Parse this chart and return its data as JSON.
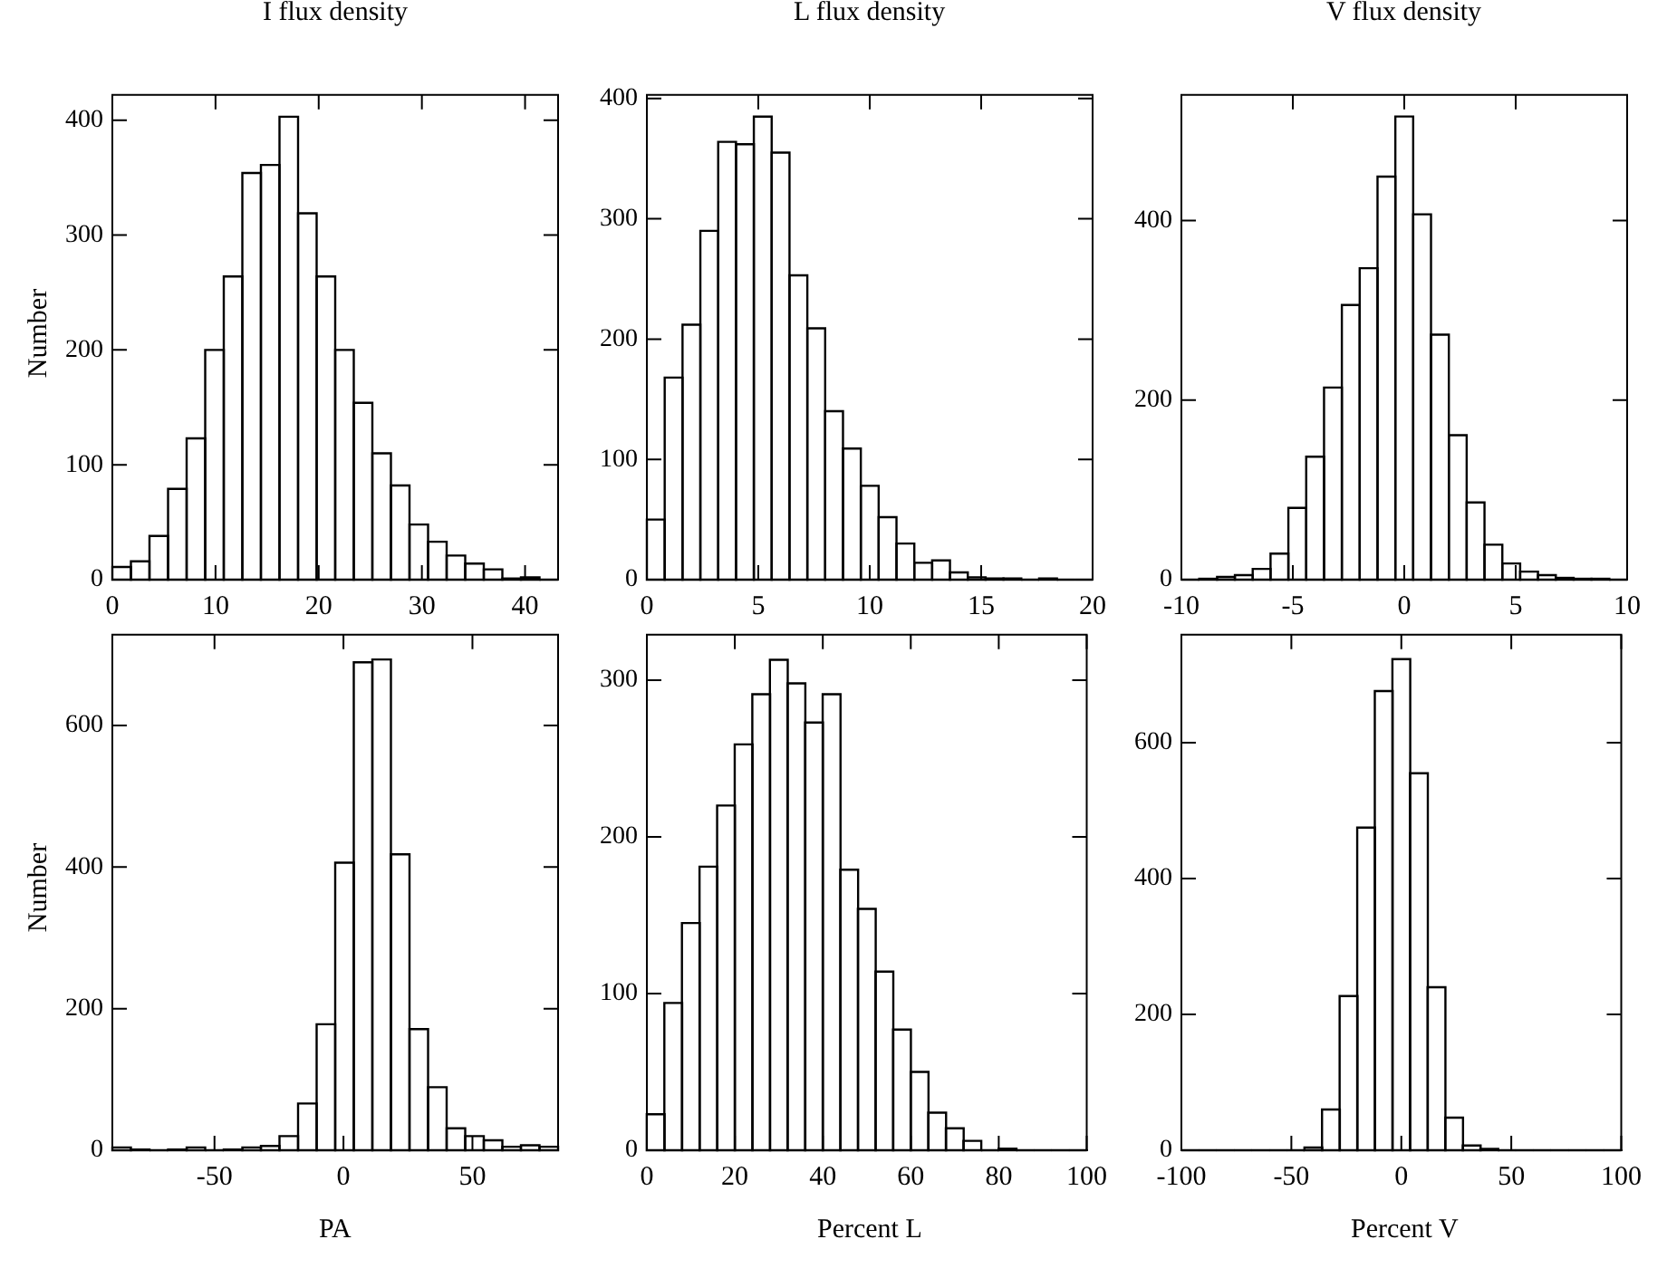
{
  "chart_data": [
    {
      "type": "histogram",
      "title": "I flux density",
      "ylabel": "Number",
      "color": "#000000",
      "bins": [
        0,
        1.8,
        3.6,
        5.4,
        7.2,
        9,
        10.8,
        12.6,
        14.4,
        16.2,
        18,
        19.8,
        21.6,
        23.4,
        25.2,
        27,
        28.8,
        30.6,
        32.4,
        34.2,
        36,
        37.8,
        39.6,
        41.4,
        43.2
      ],
      "values": [
        11,
        16,
        38,
        79,
        123,
        200,
        264,
        354,
        361,
        403,
        319,
        264,
        200,
        154,
        110,
        82,
        48,
        33,
        21,
        14,
        9,
        1,
        2,
        0
      ],
      "xlim": [
        0,
        43.2
      ],
      "xticks": [
        0,
        10,
        20,
        30,
        40
      ],
      "ylim": [
        0,
        422
      ],
      "yticks": [
        0,
        100,
        200,
        300,
        400
      ]
    },
    {
      "type": "histogram",
      "title": "L flux density",
      "color": "#000000",
      "bins": [
        0,
        0.8,
        1.6,
        2.4,
        3.2,
        4,
        4.8,
        5.6,
        6.4,
        7.2,
        8,
        8.8,
        9.6,
        10.4,
        11.2,
        12,
        12.8,
        13.6,
        14.4,
        15.2,
        16,
        16.8,
        17.6,
        18.4,
        19.2,
        20
      ],
      "values": [
        50,
        168,
        212,
        290,
        364,
        362,
        385,
        355,
        253,
        209,
        140,
        109,
        78,
        52,
        30,
        14,
        16,
        6,
        2,
        1,
        1,
        0,
        1,
        0,
        0
      ],
      "xlim": [
        0,
        20
      ],
      "xticks": [
        0,
        5,
        10,
        15,
        20
      ],
      "ylim": [
        0,
        403
      ],
      "yticks": [
        0,
        100,
        200,
        300,
        400
      ]
    },
    {
      "type": "histogram",
      "title": "V flux density",
      "color": "#000000",
      "bins": [
        -10,
        -9.2,
        -8.4,
        -7.6,
        -6.8,
        -6,
        -5.2,
        -4.4,
        -3.6,
        -2.8,
        -2,
        -1.2,
        -0.4,
        0.4,
        1.2,
        2,
        2.8,
        3.6,
        4.4,
        5.2,
        6,
        6.8,
        7.6,
        8.4,
        9.2,
        10
      ],
      "values": [
        0,
        1,
        3,
        5,
        12,
        29,
        80,
        137,
        214,
        306,
        347,
        449,
        516,
        407,
        273,
        161,
        86,
        39,
        18,
        9,
        5,
        2,
        1,
        1,
        0
      ],
      "xlim": [
        -10,
        10
      ],
      "xticks": [
        -10,
        -5,
        0,
        5,
        10
      ],
      "ylim": [
        0,
        540
      ],
      "yticks": [
        0,
        200,
        400
      ]
    },
    {
      "type": "histogram",
      "xlabel": "PA",
      "ylabel": "Number",
      "color": "#000000",
      "bins": [
        -89.6,
        -82.4,
        -75.2,
        -68,
        -60.8,
        -53.6,
        -46.4,
        -39.2,
        -32,
        -24.8,
        -17.6,
        -10.4,
        -3.2,
        4,
        11.2,
        18.4,
        25.6,
        32.8,
        40,
        47.2,
        54.4,
        61.6,
        68.8,
        76,
        83.2
      ],
      "values": [
        4,
        1,
        0,
        1,
        4,
        0,
        1,
        4,
        6,
        20,
        66,
        178,
        406,
        689,
        693,
        418,
        171,
        89,
        31,
        20,
        14,
        5,
        7,
        5
      ],
      "xlim": [
        -89.6,
        83.2
      ],
      "xticks": [
        -50,
        0,
        50
      ],
      "ylim": [
        0,
        728
      ],
      "yticks": [
        0,
        200,
        400,
        600
      ]
    },
    {
      "type": "histogram",
      "xlabel": "Percent L",
      "color": "#000000",
      "bins": [
        0,
        4,
        8,
        12,
        16,
        20,
        24,
        28,
        32,
        36,
        40,
        44,
        48,
        52,
        56,
        60,
        64,
        68,
        72,
        76,
        80,
        84,
        88,
        92,
        96,
        100
      ],
      "values": [
        23,
        94,
        145,
        181,
        220,
        259,
        291,
        313,
        298,
        273,
        291,
        179,
        154,
        114,
        77,
        50,
        24,
        14,
        6,
        0,
        1,
        0,
        0,
        0,
        0
      ],
      "xlim": [
        0,
        100
      ],
      "xticks": [
        0,
        20,
        40,
        60,
        80,
        100
      ],
      "ylim": [
        0,
        329
      ],
      "yticks": [
        0,
        100,
        200,
        300
      ]
    },
    {
      "type": "histogram",
      "xlabel": "Percent V",
      "color": "#000000",
      "bins": [
        -100,
        -92,
        -84,
        -76,
        -68,
        -60,
        -52,
        -44,
        -36,
        -28,
        -20,
        -12,
        -4,
        4,
        12,
        20,
        28,
        36,
        44,
        52,
        60,
        68,
        76,
        84,
        92,
        100
      ],
      "values": [
        0,
        0,
        0,
        0,
        0,
        0,
        0,
        4,
        60,
        227,
        475,
        676,
        723,
        555,
        240,
        48,
        7,
        2,
        0,
        0,
        0,
        0,
        0,
        0,
        0
      ],
      "xlim": [
        -100,
        100
      ],
      "xticks": [
        -100,
        -50,
        0,
        50,
        100
      ],
      "ylim": [
        0,
        759
      ],
      "yticks": [
        0,
        200,
        400,
        600
      ]
    }
  ]
}
